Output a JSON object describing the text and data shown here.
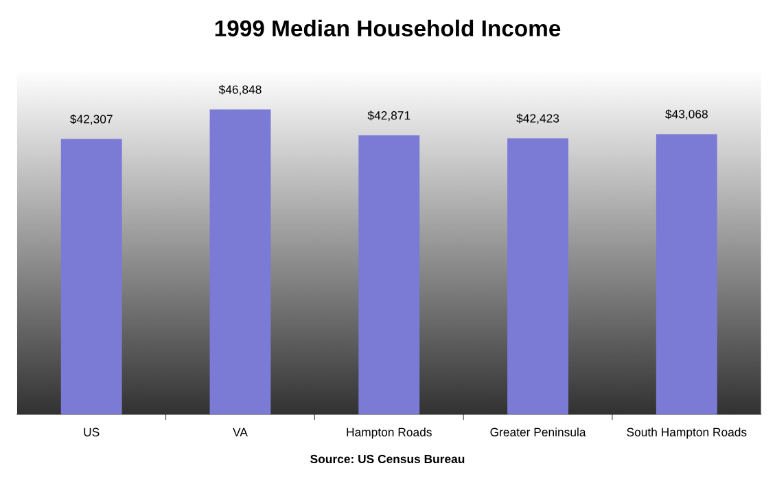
{
  "chart_data": {
    "type": "bar",
    "title": "1999 Median Household Income",
    "categories": [
      "US",
      "VA",
      "Hampton Roads",
      "Greater Peninsula",
      "South Hampton Roads"
    ],
    "values": [
      42307,
      46848,
      42871,
      42423,
      43068
    ],
    "value_labels": [
      "$42,307",
      "$46,848",
      "$42,871",
      "$42,423",
      "$43,068"
    ],
    "color": "#7b7bd6",
    "annotations": [
      "Source: US Census Bureau"
    ],
    "tick_labels": "x",
    "grid": false,
    "legend": false
  }
}
